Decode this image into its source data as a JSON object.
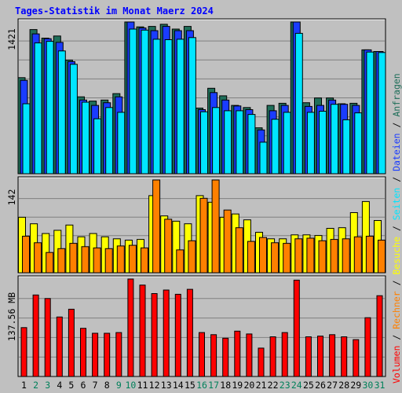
{
  "chart_data": {
    "type": "bar",
    "title": "Tages-Statistik im Monat Maerz 2024",
    "categories": [
      "1",
      "2",
      "3",
      "4",
      "5",
      "6",
      "7",
      "8",
      "9",
      "10",
      "11",
      "12",
      "13",
      "14",
      "15",
      "16",
      "17",
      "18",
      "19",
      "20",
      "21",
      "22",
      "23",
      "24",
      "25",
      "26",
      "27",
      "28",
      "29",
      "30",
      "31"
    ],
    "weekend_days": [
      "2",
      "3",
      "9",
      "10",
      "16",
      "17",
      "23",
      "24",
      "30",
      "31"
    ],
    "panels": [
      {
        "name": "requests",
        "ymax_label": "1421",
        "ymax": 1421,
        "series": [
          {
            "name": "Anfragen",
            "color": "#1f6f5a",
            "values": [
              900,
              1350,
              1270,
              1290,
              1065,
              720,
              680,
              690,
              750,
              1421,
              1375,
              1380,
              1400,
              1355,
              1380,
              615,
              800,
              730,
              640,
              620,
              430,
              640,
              660,
              1421,
              665,
              710,
              710,
              655,
              660,
              1160,
              1145
            ]
          },
          {
            "name": "Dateien",
            "color": "#1a3cff",
            "values": [
              875,
              1310,
              1265,
              1230,
              1050,
              690,
              640,
              665,
              720,
              1421,
              1365,
              1340,
              1380,
              1340,
              1340,
              600,
              760,
              690,
              635,
              600,
              410,
              590,
              640,
              1421,
              630,
              640,
              690,
              650,
              640,
              1160,
              1145
            ]
          },
          {
            "name": "Seiten",
            "color": "#00e5ff",
            "values": [
              655,
              1225,
              1240,
              1150,
              1025,
              670,
              515,
              620,
              575,
              1355,
              1345,
              1260,
              1255,
              1260,
              1275,
              580,
              620,
              590,
              590,
              555,
              295,
              510,
              575,
              1315,
              575,
              585,
              650,
              505,
              570,
              1140,
              1135
            ]
          }
        ]
      },
      {
        "name": "visits",
        "ymax_label": "142",
        "ymax": 142,
        "series": [
          {
            "name": "Besuche",
            "color": "#ffff00",
            "values": [
              85,
              75,
              60,
              65,
              73,
              55,
              60,
              55,
              52,
              50,
              51,
              118,
              87,
              79,
              75,
              118,
              108,
              85,
              90,
              81,
              62,
              52,
              52,
              58,
              58,
              57,
              68,
              69,
              92,
              109,
              80
            ]
          },
          {
            "name": "Rechner",
            "color": "#ff8000",
            "values": [
              56,
              46,
              31,
              37,
              45,
              40,
              38,
              37,
              41,
              42,
              38,
              142,
              82,
              35,
              49,
              114,
              142,
              96,
              69,
              48,
              54,
              46,
              45,
              52,
              53,
              49,
              51,
              52,
              55,
              56,
              50
            ]
          }
        ]
      },
      {
        "name": "volume",
        "ymax_label": "137.56 MB",
        "ymax": 137.56,
        "series": [
          {
            "name": "Volumen",
            "color": "#ff0000",
            "values": [
              69,
              115,
              110,
              84,
              95,
              68,
              61,
              61,
              62,
              137.56,
              129,
              117,
              122,
              116,
              123,
              62,
              59,
              54,
              64,
              60,
              40,
              56,
              62,
              136,
              56,
              57,
              59,
              56,
              52,
              83,
              114
            ]
          }
        ]
      }
    ],
    "right_legend": [
      {
        "id": "legend-volumen",
        "text": "Volumen",
        "color": "#ff0000"
      },
      {
        "id": "legend-rechner",
        "text": "Rechner",
        "color": "#ff8000"
      },
      {
        "id": "legend-besuche",
        "text": "Besuche",
        "color": "#ffff00"
      },
      {
        "id": "legend-seiten",
        "text": "Seiten",
        "color": "#00e5ff"
      },
      {
        "id": "legend-dateien",
        "text": "Dateien",
        "color": "#1a3cff"
      },
      {
        "id": "legend-anfragen",
        "text": "Anfragen",
        "color": "#1f6f5a"
      }
    ],
    "legend_separator": " / ",
    "colors": {
      "background": "#c0c0c0",
      "plot_background": "#c0c0c0",
      "grid": "#808080",
      "title": "#0000ff",
      "weekday_label": "#000000",
      "weekend_label": "#00805a"
    }
  }
}
